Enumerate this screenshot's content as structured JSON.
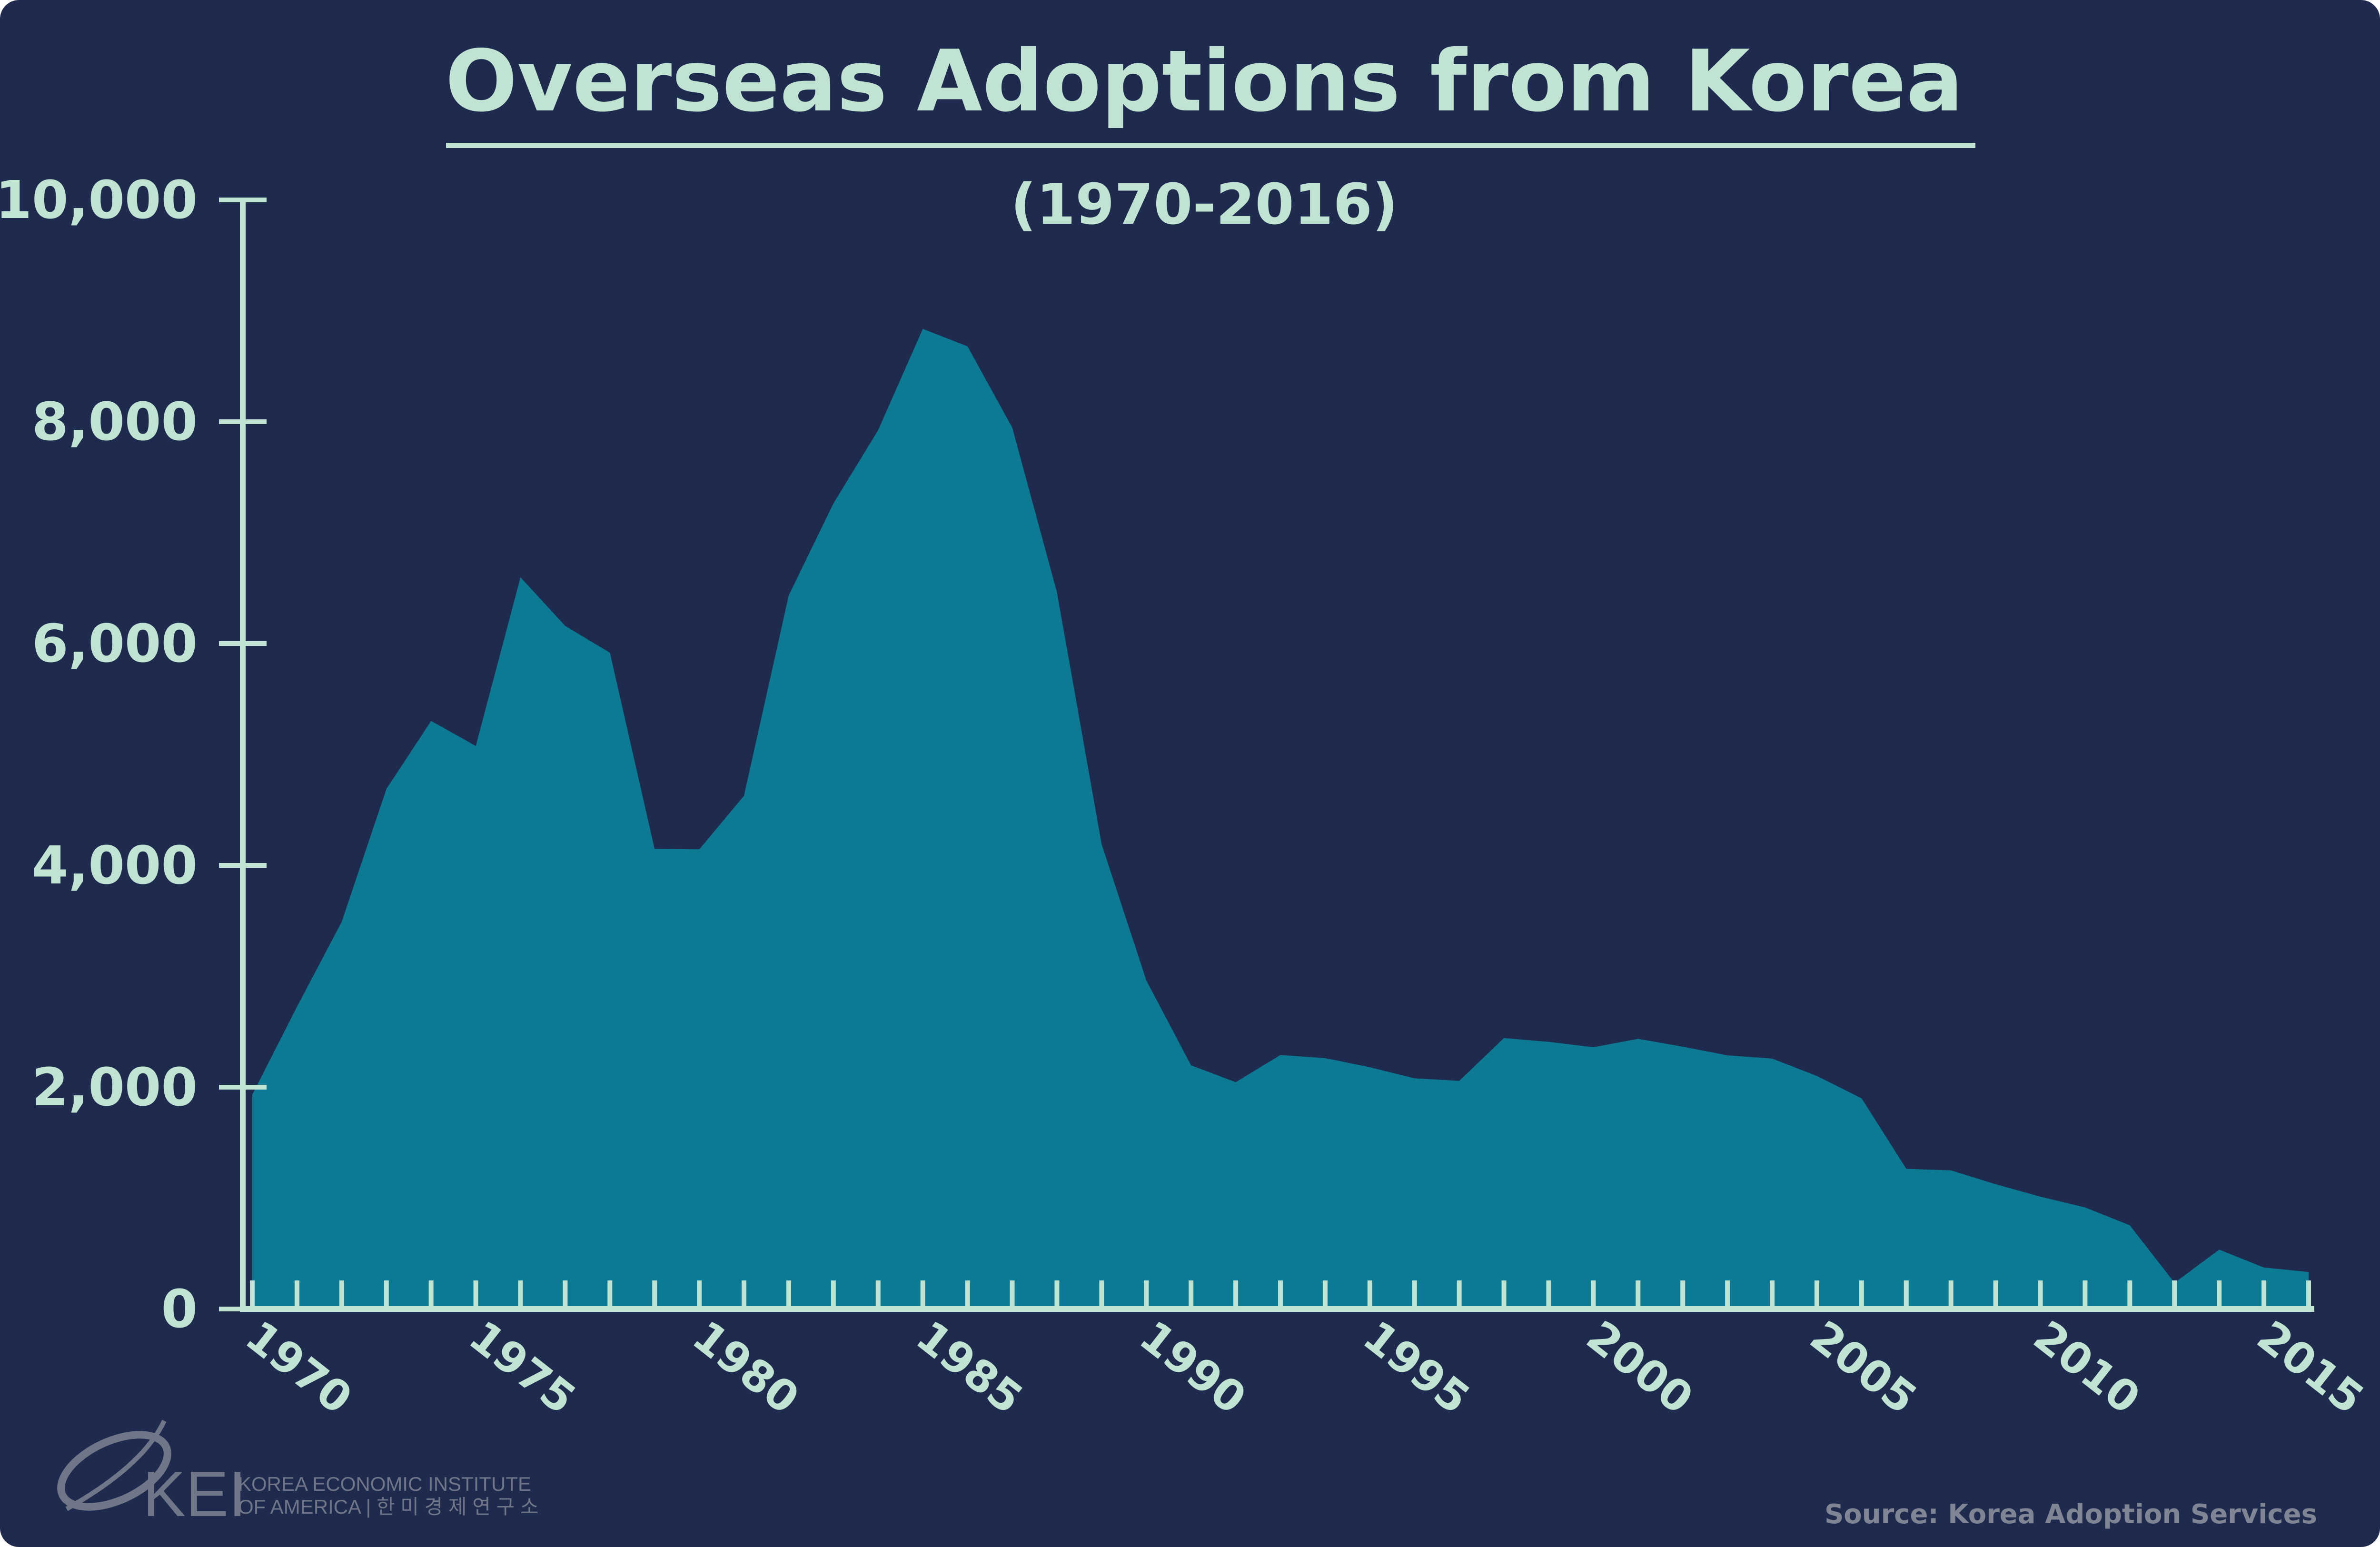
{
  "chart_data": {
    "type": "area",
    "title": "Overseas Adoptions from Korea",
    "subtitle": "(1970-2016)",
    "xlabel": "",
    "ylabel": "",
    "ylim": [
      0,
      10000
    ],
    "yticks": [
      0,
      2000,
      4000,
      6000,
      8000,
      10000
    ],
    "ytick_labels": [
      "0",
      "2,000",
      "4,000",
      "6,000",
      "8,000",
      "10,000"
    ],
    "xlim": [
      1970,
      2016
    ],
    "xtick_labels": [
      "1970",
      "1975",
      "1980",
      "1985",
      "1990",
      "1995",
      "2000",
      "2005",
      "2010",
      "2015"
    ],
    "grid": false,
    "legend": "none",
    "x": [
      1970,
      1971,
      1972,
      1973,
      1974,
      1975,
      1976,
      1977,
      1978,
      1979,
      1980,
      1981,
      1982,
      1983,
      1984,
      1985,
      1986,
      1987,
      1988,
      1989,
      1990,
      1991,
      1992,
      1993,
      1994,
      1995,
      1996,
      1997,
      1998,
      1999,
      2000,
      2001,
      2002,
      2003,
      2004,
      2005,
      2006,
      2007,
      2008,
      2009,
      2010,
      2011,
      2012,
      2013,
      2014,
      2015,
      2016
    ],
    "series": [
      {
        "values": [
          1932,
          2725,
          3490,
          4688,
          5302,
          5077,
          6597,
          6159,
          5917,
          4148,
          4144,
          4628,
          6434,
          7263,
          7924,
          8837,
          8680,
          7947,
          6463,
          4191,
          2962,
          2197,
          2045,
          2290,
          2262,
          2180,
          2080,
          2057,
          2443,
          2409,
          2360,
          2436,
          2365,
          2287,
          2258,
          2101,
          1899,
          1264,
          1250,
          1125,
          1013,
          916,
          755,
          236,
          535,
          374,
          334
        ]
      }
    ],
    "source": "Source: Korea Adoption Services",
    "colors": {
      "background": "#1f2b4e",
      "area": "#0d7a94",
      "text": "#c0e3d2",
      "source_text": "#7f8593",
      "logo": "#6f7687"
    }
  },
  "logo": {
    "mark": "KEI",
    "line1": "KOREA ECONOMIC INSTITUTE",
    "line2": "OF AMERICA | 한 미 경 제 연 구 소"
  }
}
